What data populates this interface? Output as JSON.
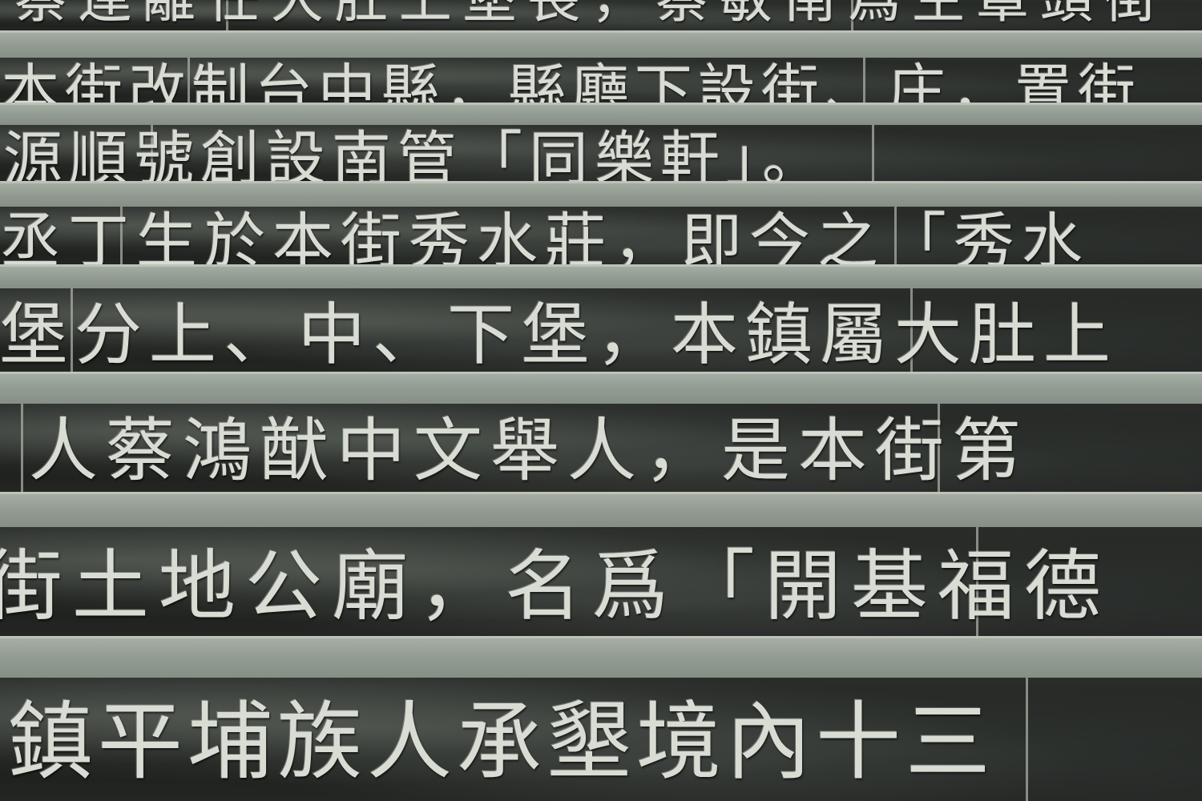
{
  "rows": [
    {
      "text": "蔡連離任大肚上堡長，蔡敏南爲生罩頭街"
    },
    {
      "text": "本街改制台中縣，縣廳下設街、庄，置街"
    },
    {
      "text": "源順號創設南管「同樂軒」。"
    },
    {
      "text": "丞丁生於本街秀水莊，即今之「秀水"
    },
    {
      "text": "堡分上、中、下堡，本鎮屬大肚上"
    },
    {
      "text": "人蔡鴻猷中文舉人，是本街第"
    },
    {
      "text": "街土地公廟，名爲「開基福德"
    },
    {
      "text": "鎮平埔族人承墾境內十三"
    }
  ]
}
